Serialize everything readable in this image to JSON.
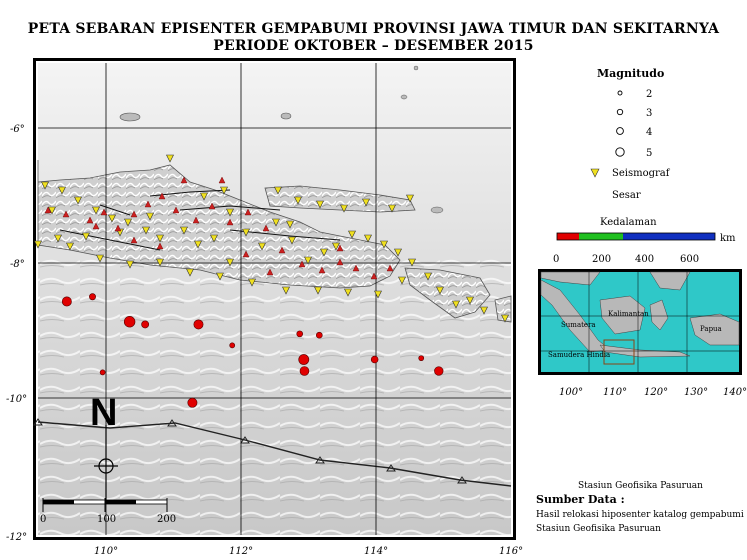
{
  "title": {
    "line1": "PETA SEBARAN EPISENTER GEMPABUMI PROVINSI JAWA TIMUR DAN SEKITARNYA",
    "line2": "PERIODE OKTOBER –  DESEMBER 2015"
  },
  "map": {
    "lat_ticks": [
      "-6°",
      "-8°",
      "-10°",
      "-12°"
    ],
    "lon_ticks": [
      "110°",
      "112°",
      "114°",
      "116°"
    ],
    "north_arrow_label": "N",
    "scalebar_ticks": [
      "0",
      "100",
      "200"
    ]
  },
  "legend": {
    "magnitude_title": "Magnitudo",
    "magnitudes": [
      "2",
      "3",
      "4",
      "5"
    ],
    "seismograph_label": "Seismograf",
    "fault_label": "Sesar",
    "depth_title": "Kedalaman",
    "depth_unit": "km",
    "depth_ticks": [
      "0",
      "200",
      "400",
      "600"
    ],
    "depth_colors": [
      "#e00000",
      "#20c020",
      "#1030c0"
    ]
  },
  "inset": {
    "lon_ticks": [
      "100°",
      "110°",
      "120°",
      "130°",
      "140°"
    ],
    "labels": [
      "Kalimantan",
      "Sumatera",
      "Papua",
      "Samudera Hindia"
    ]
  },
  "credits": {
    "station": "Stasiun Geofisika Pasuruan",
    "source_title": "Sumber Data :",
    "source_line1": "Hasil relokasi hiposenter katalog gempabumi",
    "source_line2": "Stasiun Geofisika Pasuruan"
  },
  "colors": {
    "event_shallow": "#e00000",
    "seismograph": "#f0e020"
  },
  "epicenters": [
    {
      "lon": 109.42,
      "lat": -8.57,
      "mag": 4.3
    },
    {
      "lon": 109.8,
      "lat": -8.5,
      "mag": 3.3
    },
    {
      "lon": 110.35,
      "lat": -8.87,
      "mag": 4.8
    },
    {
      "lon": 110.58,
      "lat": -8.91,
      "mag": 3.6
    },
    {
      "lon": 111.37,
      "lat": -8.91,
      "mag": 4.3
    },
    {
      "lon": 111.87,
      "lat": -9.22,
      "mag": 2.9
    },
    {
      "lon": 112.87,
      "lat": -9.05,
      "mag": 3.2
    },
    {
      "lon": 113.16,
      "lat": -9.07,
      "mag": 3.2
    },
    {
      "lon": 112.93,
      "lat": -9.43,
      "mag": 4.6
    },
    {
      "lon": 112.94,
      "lat": -9.6,
      "mag": 4.2
    },
    {
      "lon": 113.98,
      "lat": -9.43,
      "mag": 3.5
    },
    {
      "lon": 114.67,
      "lat": -9.41,
      "mag": 2.9
    },
    {
      "lon": 114.93,
      "lat": -9.6,
      "mag": 4.1
    },
    {
      "lon": 109.95,
      "lat": -9.62,
      "mag": 2.9
    },
    {
      "lon": 111.28,
      "lat": -10.07,
      "mag": 4.3
    }
  ]
}
